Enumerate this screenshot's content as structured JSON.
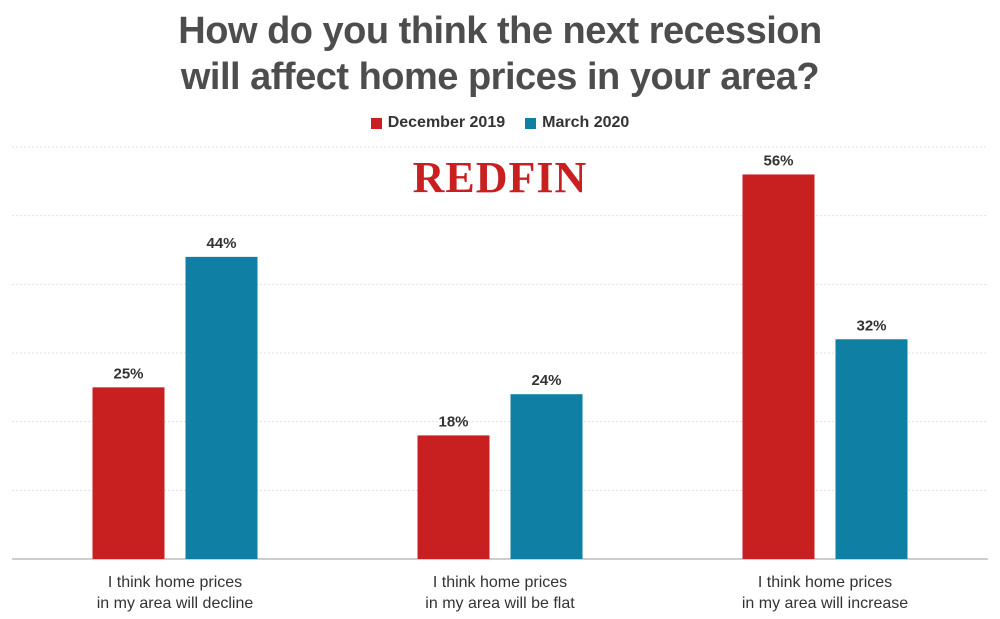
{
  "title_lines": [
    "How do you think the next recession",
    "will affect home prices in your area?"
  ],
  "logo_text": "REDFIN",
  "legend": [
    {
      "label": "December 2019",
      "color": "#c82021"
    },
    {
      "label": "March 2020",
      "color": "#0f7fa3"
    }
  ],
  "chart_data": {
    "type": "bar",
    "categories": [
      [
        "I think home prices",
        "in my area will decline"
      ],
      [
        "I think home prices",
        "in my area will be flat"
      ],
      [
        "I think home prices",
        "in my area will increase"
      ]
    ],
    "series": [
      {
        "name": "December 2019",
        "color": "#c82021",
        "values": [
          25,
          18,
          56
        ],
        "labels": [
          "25%",
          "18%",
          "56%"
        ]
      },
      {
        "name": "March 2020",
        "color": "#0f7fa3",
        "values": [
          44,
          24,
          32
        ],
        "labels": [
          "44%",
          "24%",
          "32%"
        ]
      }
    ],
    "ylim": [
      0,
      60
    ],
    "gridlines": true,
    "legend_position": "top-center"
  }
}
